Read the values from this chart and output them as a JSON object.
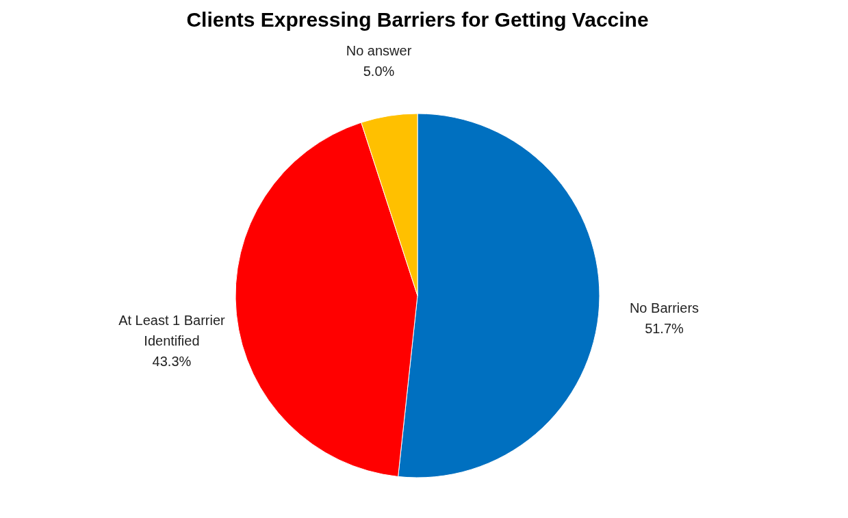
{
  "chart_data": {
    "type": "pie",
    "title": "Clients Expressing Barriers for Getting Vaccine",
    "categories": [
      "No Barriers",
      "At Least 1 Barrier Identified",
      "No answer"
    ],
    "values": [
      51.7,
      43.3,
      5.0
    ],
    "colors": [
      "#0070c0",
      "#ff0000",
      "#ffc000"
    ],
    "value_labels": [
      "51.7%",
      "43.3%",
      "5.0%"
    ]
  }
}
